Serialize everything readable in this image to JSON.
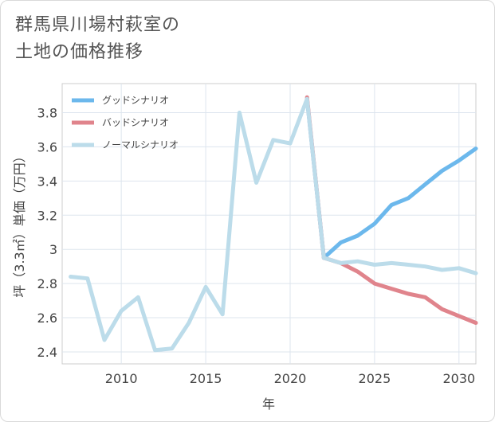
{
  "title_line1": "群馬県川場村萩室の",
  "title_line2": "土地の価格推移",
  "chart_data": {
    "type": "line",
    "xlabel": "年",
    "ylabel": "坪（3.3㎡）単価（万円）",
    "xlim": [
      2006.5,
      2031
    ],
    "ylim": [
      2.33,
      3.97
    ],
    "x_ticks": [
      2010,
      2015,
      2020,
      2025,
      2030
    ],
    "x_tick_labels": [
      "2010",
      "2015",
      "2020",
      "2025",
      "2030"
    ],
    "y_ticks": [
      2.4,
      2.6,
      2.8,
      3.0,
      3.2,
      3.4,
      3.6,
      3.8
    ],
    "y_tick_labels": [
      "2.4",
      "2.6",
      "2.8",
      "3",
      "3.2",
      "3.4",
      "3.6",
      "3.8"
    ],
    "grid": true,
    "legend_position": "top-left",
    "series": [
      {
        "name": "グッドシナリオ",
        "color": "#6cb8ec",
        "x": [
          2021,
          2022,
          2023,
          2024,
          2025,
          2026,
          2027,
          2028,
          2029,
          2030,
          2031
        ],
        "values": [
          3.88,
          2.95,
          3.04,
          3.08,
          3.15,
          3.26,
          3.3,
          3.38,
          3.46,
          3.52,
          3.59
        ]
      },
      {
        "name": "バッドシナリオ",
        "color": "#e0848c",
        "x": [
          2021,
          2022,
          2023,
          2024,
          2025,
          2026,
          2027,
          2028,
          2029,
          2030,
          2031
        ],
        "values": [
          3.89,
          2.95,
          2.92,
          2.87,
          2.8,
          2.77,
          2.74,
          2.72,
          2.65,
          2.61,
          2.57
        ]
      },
      {
        "name": "ノーマルシナリオ",
        "color": "#bcdcea",
        "x": [
          2007,
          2008,
          2009,
          2010,
          2011,
          2012,
          2013,
          2014,
          2015,
          2016,
          2017,
          2018,
          2019,
          2020,
          2021,
          2022,
          2023,
          2024,
          2025,
          2026,
          2027,
          2028,
          2029,
          2030,
          2031
        ],
        "values": [
          2.84,
          2.83,
          2.47,
          2.64,
          2.72,
          2.41,
          2.42,
          2.57,
          2.78,
          2.62,
          3.8,
          3.39,
          3.64,
          3.62,
          3.88,
          2.95,
          2.92,
          2.93,
          2.91,
          2.92,
          2.91,
          2.9,
          2.88,
          2.89,
          2.86
        ]
      }
    ]
  }
}
